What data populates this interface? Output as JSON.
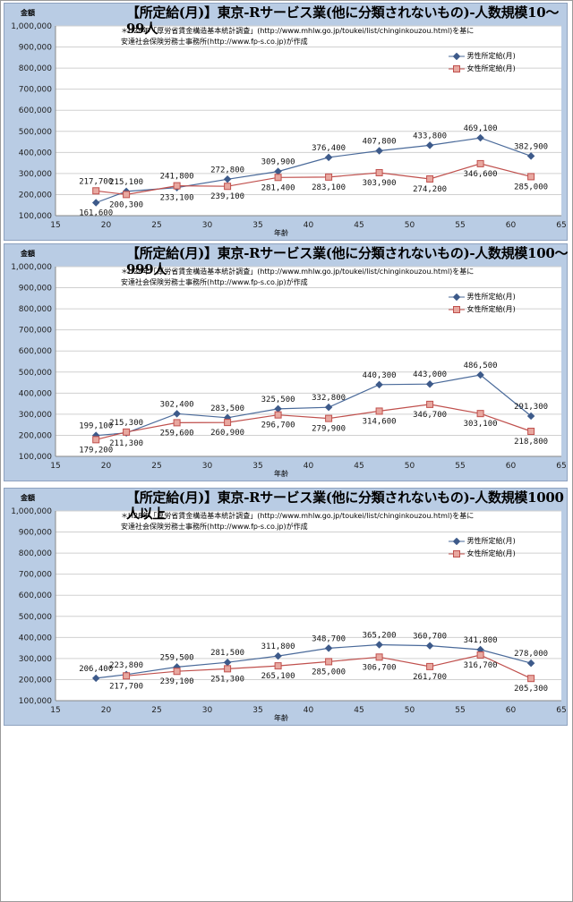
{
  "chart_data": [
    {
      "type": "line",
      "title": "【所定給(月)】東京-Rサービス業(他に分類されないもの)-人数規模10～99人",
      "ylabel": "金額",
      "xlabel": "年齢",
      "note": "＊H28年「厚労省賃金構造基本統計調査」(http://www.mhlw.go.jp/toukei/list/chinginkouzou.html)を基に\n安達社会保険労務士事務所(http://www.fp-s.co.jp)が作成",
      "xlim": [
        15,
        65
      ],
      "ylim": [
        100000,
        1000000
      ],
      "xticks": [
        "15",
        "20",
        "25",
        "30",
        "35",
        "40",
        "45",
        "50",
        "55",
        "60",
        "65"
      ],
      "yticks": [
        "100,000",
        "200,000",
        "300,000",
        "400,000",
        "500,000",
        "600,000",
        "700,000",
        "800,000",
        "900,000",
        "1,000,000"
      ],
      "x": [
        19,
        22,
        27,
        32,
        37,
        42,
        47,
        52,
        57,
        62
      ],
      "series": [
        {
          "name": "男性所定給(月)",
          "color": "#4a6a9a",
          "values": [
            161600,
            215100,
            233100,
            272800,
            309900,
            376400,
            407800,
            433800,
            469100,
            382900
          ],
          "labels": [
            "161,600",
            "215,100",
            "233,100",
            "272,800",
            "309,900",
            "376,400",
            "407,800",
            "433,800",
            "469,100",
            "382,900"
          ]
        },
        {
          "name": "女性所定給(月)",
          "color": "#c0504d",
          "values": [
            217700,
            200300,
            241800,
            239100,
            281400,
            283100,
            303900,
            274200,
            346600,
            285000
          ],
          "labels": [
            "217,700",
            "200,300",
            "241,800",
            "239,100",
            "281,400",
            "283,100",
            "303,900",
            "274,200",
            "346,600",
            "285,000"
          ]
        }
      ]
    },
    {
      "type": "line",
      "title": "【所定給(月)】東京-Rサービス業(他に分類されないもの)-人数規模100～999人",
      "ylabel": "金額",
      "xlabel": "年齢",
      "note": "＊H28年「厚労省賃金構造基本統計調査」(http://www.mhlw.go.jp/toukei/list/chinginkouzou.html)を基に\n安達社会保険労務士事務所(http://www.fp-s.co.jp)が作成",
      "xlim": [
        15,
        65
      ],
      "ylim": [
        100000,
        1000000
      ],
      "xticks": [
        "15",
        "20",
        "25",
        "30",
        "35",
        "40",
        "45",
        "50",
        "55",
        "60",
        "65"
      ],
      "yticks": [
        "100,000",
        "200,000",
        "300,000",
        "400,000",
        "500,000",
        "600,000",
        "700,000",
        "800,000",
        "900,000",
        "1,000,000"
      ],
      "x": [
        19,
        22,
        27,
        32,
        37,
        42,
        47,
        52,
        57,
        62
      ],
      "series": [
        {
          "name": "男性所定給(月)",
          "color": "#4a6a9a",
          "values": [
            199100,
            211300,
            302400,
            283500,
            325500,
            332800,
            440300,
            443000,
            486500,
            291300
          ],
          "labels": [
            "199,100",
            "211,300",
            "302,400",
            "283,500",
            "325,500",
            "332,800",
            "440,300",
            "443,000",
            "486,500",
            "291,300"
          ]
        },
        {
          "name": "女性所定給(月)",
          "color": "#c0504d",
          "values": [
            179200,
            215300,
            259600,
            260900,
            296700,
            279900,
            314600,
            346700,
            303100,
            218800
          ],
          "labels": [
            "179,200",
            "215,300",
            "259,600",
            "260,900",
            "296,700",
            "279,900",
            "314,600",
            "346,700",
            "303,100",
            "218,800"
          ]
        }
      ]
    },
    {
      "type": "line",
      "title": "【所定給(月)】東京-Rサービス業(他に分類されないもの)-人数規模1000人以上",
      "ylabel": "金額",
      "xlabel": "年齢",
      "note": "＊H28年「厚労省賃金構造基本統計調査」(http://www.mhlw.go.jp/toukei/list/chinginkouzou.html)を基に\n安達社会保険労務士事務所(http://www.fp-s.co.jp)が作成",
      "xlim": [
        15,
        65
      ],
      "ylim": [
        100000,
        1000000
      ],
      "xticks": [
        "15",
        "20",
        "25",
        "30",
        "35",
        "40",
        "45",
        "50",
        "55",
        "60",
        "65"
      ],
      "yticks": [
        "100,000",
        "200,000",
        "300,000",
        "400,000",
        "500,000",
        "600,000",
        "700,000",
        "800,000",
        "900,000",
        "1,000,000"
      ],
      "x": [
        19,
        22,
        27,
        32,
        37,
        42,
        47,
        52,
        57,
        62
      ],
      "series": [
        {
          "name": "男性所定給(月)",
          "color": "#4a6a9a",
          "values": [
            206400,
            223800,
            259500,
            281500,
            311800,
            348700,
            365200,
            360700,
            341800,
            278000
          ],
          "labels": [
            "206,400",
            "223,800",
            "259,500",
            "281,500",
            "311,800",
            "348,700",
            "365,200",
            "360,700",
            "341,800",
            "278,000"
          ]
        },
        {
          "name": "女性所定給(月)",
          "color": "#c0504d",
          "values": [
            null,
            217700,
            239100,
            251300,
            265100,
            285000,
            306700,
            261700,
            316700,
            205300
          ],
          "labels": [
            "",
            "217,700",
            "239,100",
            "251,300",
            "265,100",
            "285,000",
            "306,700",
            "261,700",
            "316,700",
            "205,300"
          ]
        }
      ]
    }
  ]
}
